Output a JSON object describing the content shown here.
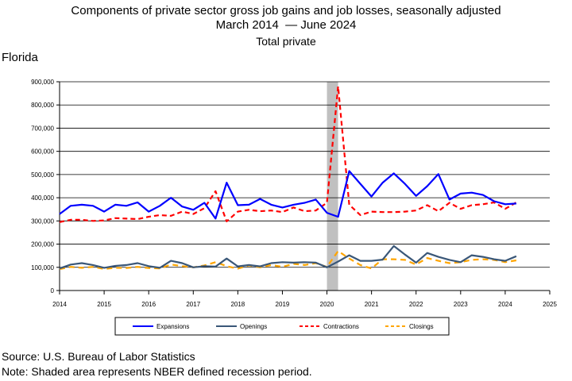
{
  "title": {
    "line1": "Components of private sector gross job gains and job losses, seasonally adjusted",
    "line2_start": "March 2014",
    "line2_end": "June 2024",
    "line3": "Total private"
  },
  "region": "Florida",
  "footer": {
    "source": "Source: U.S. Bureau of Labor Statistics",
    "note": "Note: Shaded area represents NBER defined recession period."
  },
  "colors": {
    "expansions": "#0000ff",
    "openings": "#3a5778",
    "contractions": "#ff0000",
    "closings": "#ffa500",
    "recession": "#c0c0c0"
  },
  "chart_data": {
    "type": "line",
    "xlim": [
      2014,
      2025
    ],
    "ylim": [
      0,
      900000
    ],
    "x_ticks": [
      "2014",
      "2015",
      "2016",
      "2017",
      "2018",
      "2019",
      "2020",
      "2021",
      "2022",
      "2023",
      "2024",
      "2025"
    ],
    "y_ticks": [
      "0",
      "100,000",
      "200,000",
      "300,000",
      "400,000",
      "500,000",
      "600,000",
      "700,000",
      "800,000",
      "900,000"
    ],
    "grid": "horizontal",
    "legend_position": "bottom",
    "recession": [
      2020.0,
      2020.25
    ],
    "x": [
      2014.0,
      2014.25,
      2014.5,
      2014.75,
      2015.0,
      2015.25,
      2015.5,
      2015.75,
      2016.0,
      2016.25,
      2016.5,
      2016.75,
      2017.0,
      2017.25,
      2017.5,
      2017.75,
      2018.0,
      2018.25,
      2018.5,
      2018.75,
      2019.0,
      2019.25,
      2019.5,
      2019.75,
      2020.0,
      2020.25,
      2020.5,
      2020.75,
      2021.0,
      2021.25,
      2021.5,
      2021.75,
      2022.0,
      2022.25,
      2022.5,
      2022.75,
      2023.0,
      2023.25,
      2023.5,
      2023.75,
      2024.0,
      2024.25
    ],
    "series": [
      {
        "name": "Expansions",
        "style": "solid",
        "values": [
          330000,
          365000,
          370000,
          365000,
          340000,
          370000,
          365000,
          380000,
          340000,
          365000,
          400000,
          362000,
          348000,
          378000,
          310000,
          465000,
          368000,
          370000,
          395000,
          370000,
          358000,
          370000,
          378000,
          392000,
          335000,
          318000,
          515000,
          460000,
          405000,
          465000,
          505000,
          460000,
          408000,
          450000,
          502000,
          392000,
          418000,
          422000,
          412000,
          385000,
          372000,
          375000
        ]
      },
      {
        "name": "Openings",
        "style": "solid",
        "values": [
          95000,
          112000,
          118000,
          110000,
          98000,
          106000,
          110000,
          118000,
          105000,
          98000,
          128000,
          118000,
          100000,
          105000,
          103000,
          138000,
          104000,
          110000,
          104000,
          118000,
          122000,
          120000,
          122000,
          120000,
          100000,
          125000,
          152000,
          128000,
          128000,
          133000,
          192000,
          155000,
          120000,
          162000,
          145000,
          132000,
          122000,
          152000,
          145000,
          135000,
          128000,
          148000
        ]
      },
      {
        "name": "Contractions",
        "style": "dashed",
        "values": [
          295000,
          305000,
          305000,
          300000,
          302000,
          312000,
          310000,
          308000,
          318000,
          325000,
          322000,
          340000,
          330000,
          355000,
          428000,
          298000,
          340000,
          348000,
          342000,
          345000,
          338000,
          358000,
          342000,
          345000,
          378000,
          880000,
          370000,
          325000,
          340000,
          338000,
          338000,
          340000,
          345000,
          368000,
          342000,
          378000,
          352000,
          368000,
          372000,
          380000,
          352000,
          380000
        ]
      },
      {
        "name": "Closings",
        "style": "dashed",
        "values": [
          92000,
          102000,
          98000,
          102000,
          93000,
          98000,
          97000,
          102000,
          97000,
          95000,
          112000,
          105000,
          100000,
          108000,
          122000,
          105000,
          94000,
          108000,
          100000,
          110000,
          102000,
          115000,
          110000,
          118000,
          102000,
          170000,
          138000,
          110000,
          95000,
          135000,
          135000,
          132000,
          112000,
          140000,
          128000,
          118000,
          122000,
          132000,
          135000,
          132000,
          122000,
          130000
        ]
      }
    ]
  }
}
